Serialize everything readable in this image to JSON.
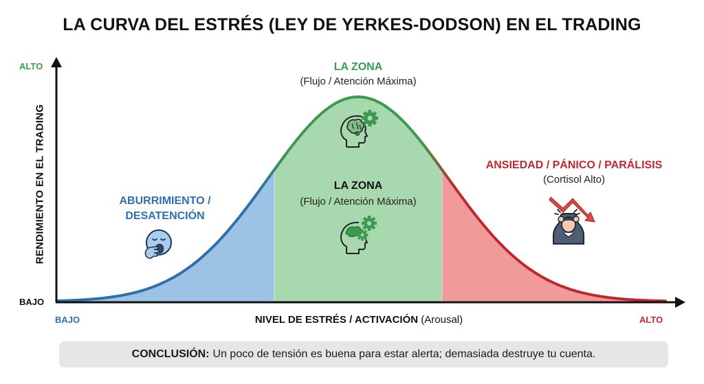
{
  "title": "LA CURVA DEL ESTRÉS (LEY DE YERKES-DODSON) EN EL TRADING",
  "y_axis": {
    "label": "RENDIMIENTO EN EL TRADING",
    "high": "ALTO",
    "low": "BAJO"
  },
  "x_axis": {
    "label_bold": "NIVEL DE ESTRÉS / ACTIVACIÓN",
    "label_light": "(Arousal)",
    "low": "BAJO",
    "high": "ALTO"
  },
  "zones": {
    "peak": {
      "title": "LA ZONA",
      "subtitle": "(Flujo / Atención Máxima)",
      "icon": "brain-gear-icon"
    },
    "optimal": {
      "title": "LA ZONA",
      "subtitle": "(Flujo / Atención Máxima)",
      "icon": "brain-gears-icon"
    },
    "boredom": {
      "title_line1": "ABURRIMIENTO /",
      "title_line2": "DESATENCIÓN",
      "icon": "yawning-face-icon"
    },
    "panic": {
      "title": "ANSIEDAD / PÁNICO / PARÁLISIS",
      "subtitle": "(Cortisol Alto)",
      "icon": "stressed-trader-falling-chart-icon"
    }
  },
  "conclusion": {
    "label": "CONCLUSIÓN:",
    "text": "Un poco de tensión es buena para estar alerta; demasiada destruye tu cuenta."
  },
  "colors": {
    "boredom": "#2e6fae",
    "zone": "#3a9a4e",
    "panic": "#c0282e",
    "boredom_fill": "#9cc3e4",
    "zone_fill": "#a8d8ad",
    "panic_fill": "#f09a9a"
  },
  "chart_data": {
    "type": "area",
    "title": "LA CURVA DEL ESTRÉS (LEY DE YERKES-DODSON) EN EL TRADING",
    "xlabel": "NIVEL DE ESTRÉS / ACTIVACIÓN (Arousal)",
    "ylabel": "RENDIMIENTO EN EL TRADING",
    "curve": "inverted-U (bell)",
    "x_ticks": [
      "BAJO",
      "ALTO"
    ],
    "y_ticks": [
      "BAJO",
      "ALTO"
    ],
    "regions": [
      {
        "name": "ABURRIMIENTO / DESATENCIÓN",
        "x_range": [
          0,
          0.35
        ],
        "color": "#9cc3e4"
      },
      {
        "name": "LA ZONA (Flujo / Atención Máxima)",
        "x_range": [
          0.35,
          0.62
        ],
        "color": "#a8d8ad"
      },
      {
        "name": "ANSIEDAD / PÁNICO / PARÁLISIS (Cortisol Alto)",
        "x_range": [
          0.62,
          1.0
        ],
        "color": "#f09a9a"
      }
    ],
    "peak_x": 0.48,
    "grid": false,
    "legend": "none"
  }
}
